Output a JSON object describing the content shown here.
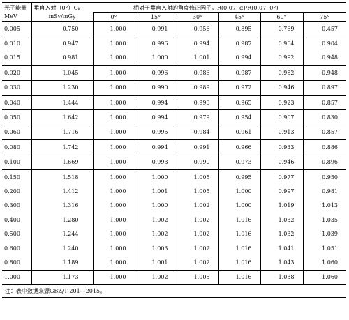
{
  "header": {
    "col_energy": "光子能量",
    "col_energy_unit": "MeV",
    "col_normal": "垂直入射（0°）Cₖ",
    "col_normal_unit": "mSv/mGy",
    "group_title": "相对于垂直入射的角度修正因子，R(0.07, α)/R(0.07, 0°)",
    "angles": [
      "0°",
      "15°",
      "30°",
      "45°",
      "60°",
      "75°"
    ]
  },
  "rows": [
    {
      "e": "0.005",
      "c": "0.750",
      "f": [
        "1.000",
        "0.991",
        "0.956",
        "0.895",
        "0.769",
        "0.457"
      ]
    },
    {
      "e": "0.010",
      "c": "0.947",
      "f": [
        "1.000",
        "0.996",
        "0.994",
        "0.987",
        "0.964",
        "0.904"
      ]
    },
    {
      "e": "0.015",
      "c": "0.981",
      "f": [
        "1.000",
        "1.000",
        "1.001",
        "0.994",
        "0.992",
        "0.948"
      ]
    },
    {
      "e": "0.020",
      "c": "1.045",
      "f": [
        "1.000",
        "0.996",
        "0.986",
        "0.987",
        "0.982",
        "0.948"
      ]
    },
    {
      "e": "0.030",
      "c": "1.230",
      "f": [
        "1.000",
        "0.990",
        "0.989",
        "0.972",
        "0.946",
        "0.897"
      ]
    },
    {
      "e": "0.040",
      "c": "1.444",
      "f": [
        "1.000",
        "0.994",
        "0.990",
        "0.965",
        "0.923",
        "0.857"
      ]
    },
    {
      "e": "0.050",
      "c": "1.642",
      "f": [
        "1.000",
        "0.994",
        "0.979",
        "0.954",
        "0.907",
        "0.830"
      ]
    },
    {
      "e": "0.060",
      "c": "1.716",
      "f": [
        "1.000",
        "0.995",
        "0.984",
        "0.961",
        "0.913",
        "0.857"
      ]
    },
    {
      "e": "0.080",
      "c": "1.742",
      "f": [
        "1.000",
        "0.994",
        "0.991",
        "0.966",
        "0.933",
        "0.886"
      ]
    },
    {
      "e": "0.100",
      "c": "1.669",
      "f": [
        "1.000",
        "0.993",
        "0.990",
        "0.973",
        "0.946",
        "0.896"
      ]
    },
    {
      "e": "0.150",
      "c": "1.518",
      "f": [
        "1.000",
        "1.000",
        "1.005",
        "0.995",
        "0.977",
        "0.950"
      ]
    },
    {
      "e": "0.200",
      "c": "1.412",
      "f": [
        "1.000",
        "1.001",
        "1.005",
        "1.000",
        "0.997",
        "0.981"
      ]
    },
    {
      "e": "0.300",
      "c": "1.316",
      "f": [
        "1.000",
        "1.000",
        "1.002",
        "1.000",
        "1.019",
        "1.013"
      ]
    },
    {
      "e": "0.400",
      "c": "1.280",
      "f": [
        "1.000",
        "1.002",
        "1.002",
        "1.016",
        "1.032",
        "1.035"
      ]
    },
    {
      "e": "0.500",
      "c": "1.244",
      "f": [
        "1.000",
        "1.002",
        "1.002",
        "1.016",
        "1.032",
        "1.039"
      ]
    },
    {
      "e": "0.600",
      "c": "1.240",
      "f": [
        "1.000",
        "1.003",
        "1.002",
        "1.016",
        "1.041",
        "1.051"
      ]
    },
    {
      "e": "0.800",
      "c": "1.189",
      "f": [
        "1.000",
        "1.001",
        "1.002",
        "1.016",
        "1.043",
        "1.060"
      ]
    },
    {
      "e": "1.000",
      "c": "1.173",
      "f": [
        "1.000",
        "1.002",
        "1.005",
        "1.016",
        "1.038",
        "1.060"
      ]
    }
  ],
  "note": "注：表中数据来源GBZ/T 201—2015。"
}
